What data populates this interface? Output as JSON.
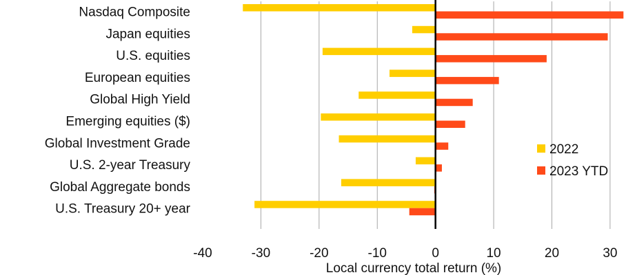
{
  "chart_data": {
    "type": "bar",
    "orientation": "horizontal",
    "categories": [
      "Nasdaq Composite",
      "Japan equities",
      "U.S. equities",
      "European equities",
      "Global High Yield",
      "Emerging equities ($)",
      "Global Investment Grade",
      "U.S. 2-year Treasury",
      "Global Aggregate bonds",
      "U.S. Treasury 20+ year"
    ],
    "series": [
      {
        "name": "2022",
        "color": "#FFCE00",
        "values": [
          -33.1,
          -4.0,
          -19.4,
          -7.9,
          -13.2,
          -19.7,
          -16.6,
          -3.4,
          -16.2,
          -31.1
        ]
      },
      {
        "name": "2023 YTD",
        "color": "#FF4A19",
        "values": [
          32.3,
          29.6,
          19.1,
          10.9,
          6.4,
          5.1,
          2.2,
          1.1,
          -0.2,
          -4.5
        ]
      }
    ],
    "xlabel": "Local currency total return (%)",
    "xlim": [
      -40,
      32.5
    ],
    "xticks": [
      -40,
      -30,
      -20,
      -10,
      0,
      10,
      20,
      30
    ],
    "grid": "vertical",
    "legend": "right"
  }
}
